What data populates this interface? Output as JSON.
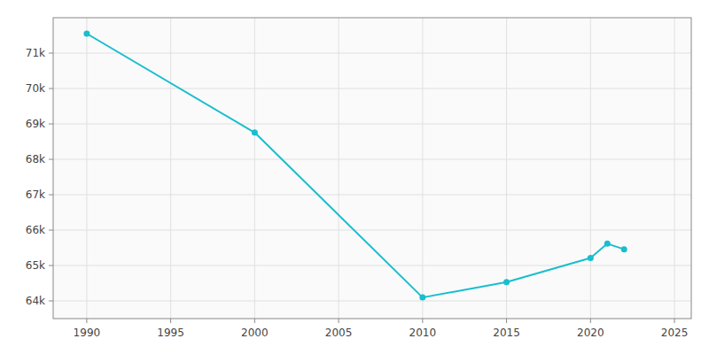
{
  "chart_data": {
    "type": "line",
    "x": [
      1990,
      2000,
      2010,
      2015,
      2020,
      2021,
      2022
    ],
    "values": [
      71550,
      68755,
      64097,
      64530,
      65211,
      65616,
      65459
    ],
    "color": "#17becf",
    "marker": "circle",
    "xlim": [
      1988,
      2026
    ],
    "ylim": [
      63500,
      72000
    ],
    "xticks": [
      1990,
      1995,
      2000,
      2005,
      2010,
      2015,
      2020,
      2025
    ],
    "yticks": [
      {
        "value": 64000,
        "label": "64k"
      },
      {
        "value": 65000,
        "label": "65k"
      },
      {
        "value": 66000,
        "label": "66k"
      },
      {
        "value": 67000,
        "label": "67k"
      },
      {
        "value": 68000,
        "label": "68k"
      },
      {
        "value": 69000,
        "label": "69k"
      },
      {
        "value": 70000,
        "label": "70k"
      },
      {
        "value": 71000,
        "label": "71k"
      }
    ],
    "grid": true
  }
}
